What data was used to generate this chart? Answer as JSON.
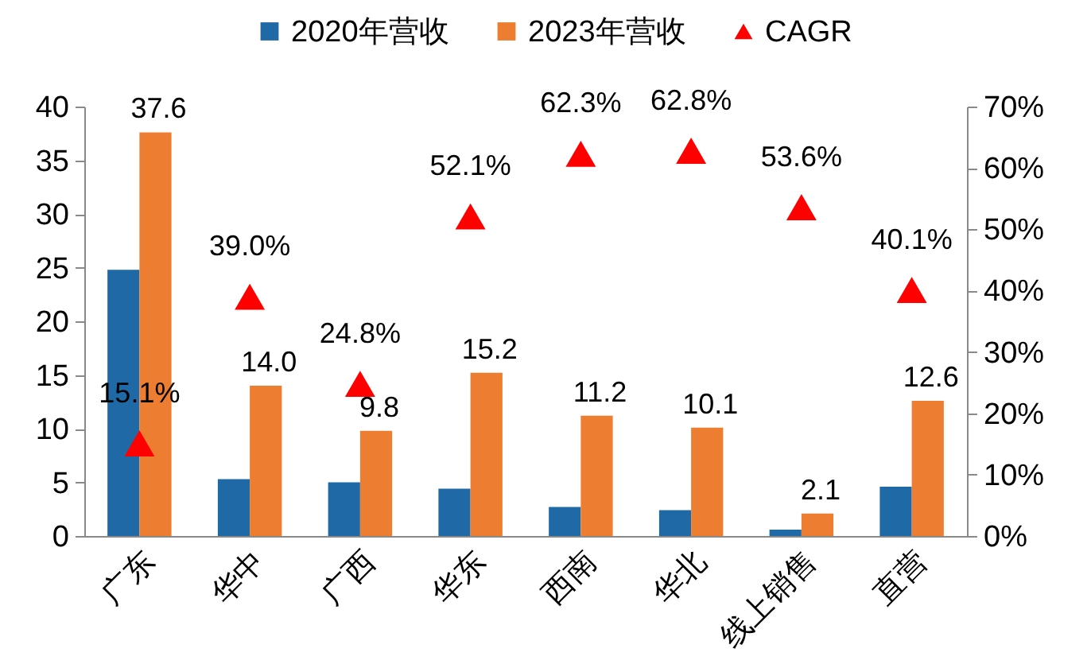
{
  "chart_data": {
    "type": "bar",
    "categories": [
      "广东",
      "华中",
      "广西",
      "华东",
      "西南",
      "华北",
      "线上销售",
      "直营"
    ],
    "series": [
      {
        "name": "2020年营收",
        "color": "#1f6aa6",
        "values": [
          24.8,
          5.3,
          5.0,
          4.4,
          2.7,
          2.4,
          0.6,
          4.6
        ]
      },
      {
        "name": "2023年营收",
        "color": "#ed7d31",
        "values": [
          37.6,
          14.0,
          9.8,
          15.2,
          11.2,
          10.1,
          2.1,
          12.6
        ],
        "value_labels": [
          "37.6",
          "14.0",
          "9.8",
          "15.2",
          "11.2",
          "10.1",
          "2.1",
          "12.6"
        ]
      },
      {
        "name": "CAGR",
        "type": "scatter",
        "axis": "y2",
        "marker": "triangle",
        "color": "#ff0000",
        "values": [
          15.1,
          39.0,
          24.8,
          52.1,
          62.3,
          62.8,
          53.6,
          40.1
        ],
        "value_labels": [
          "15.1%",
          "39.0%",
          "24.8%",
          "52.1%",
          "62.3%",
          "62.8%",
          "53.6%",
          "40.1%"
        ]
      }
    ],
    "ylim": [
      0,
      40
    ],
    "yticks": [
      0,
      5,
      10,
      15,
      20,
      25,
      30,
      35,
      40
    ],
    "y2lim": [
      0,
      70
    ],
    "y2ticks": [
      {
        "value": 0,
        "label": "0%"
      },
      {
        "value": 10,
        "label": "10%"
      },
      {
        "value": 20,
        "label": "20%"
      },
      {
        "value": 30,
        "label": "30%"
      },
      {
        "value": 40,
        "label": "40%"
      },
      {
        "value": 50,
        "label": "50%"
      },
      {
        "value": 60,
        "label": "60%"
      },
      {
        "value": 70,
        "label": "70%"
      }
    ],
    "legend": "top"
  }
}
